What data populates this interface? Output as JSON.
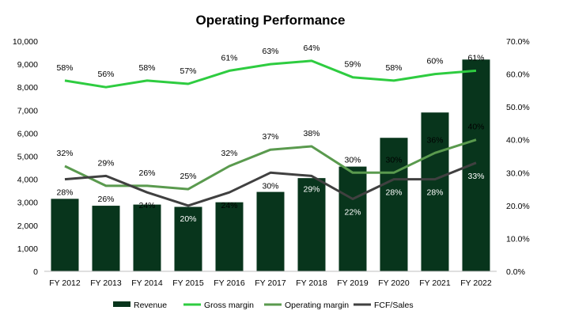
{
  "chart_data": {
    "type": "bar",
    "title": "Operating Performance",
    "categories": [
      "FY 2012",
      "FY 2013",
      "FY 2014",
      "FY 2015",
      "FY 2016",
      "FY 2017",
      "FY 2018",
      "FY 2019",
      "FY 2020",
      "FY 2021",
      "FY 2022"
    ],
    "y_left": {
      "min": 0,
      "max": 10000,
      "step": 1000,
      "tick_labels": [
        "0",
        "1,000",
        "2,000",
        "3,000",
        "4,000",
        "5,000",
        "6,000",
        "7,000",
        "8,000",
        "9,000",
        "10,000"
      ]
    },
    "y_right": {
      "min": 0,
      "max": 0.7,
      "step": 0.1,
      "tick_labels": [
        "0.0%",
        "10.0%",
        "20.0%",
        "30.0%",
        "40.0%",
        "50.0%",
        "60.0%",
        "70.0%"
      ]
    },
    "series": [
      {
        "name": "Revenue",
        "type": "bar",
        "axis": "left",
        "color": "#08351c",
        "values": [
          3150,
          2850,
          2900,
          2800,
          3000,
          3450,
          4050,
          4550,
          5800,
          6900,
          9200
        ]
      },
      {
        "name": "Gross margin",
        "type": "line",
        "axis": "right",
        "color": "#2ecc40",
        "values": [
          0.58,
          0.56,
          0.58,
          0.57,
          0.61,
          0.63,
          0.64,
          0.59,
          0.58,
          0.6,
          0.61
        ],
        "labels": [
          "58%",
          "56%",
          "58%",
          "57%",
          "61%",
          "63%",
          "64%",
          "59%",
          "58%",
          "60%",
          "61%"
        ]
      },
      {
        "name": "Operating margin",
        "type": "line",
        "axis": "right",
        "color": "#5a9a4e",
        "values": [
          0.32,
          0.26,
          0.26,
          0.25,
          0.32,
          0.37,
          0.38,
          0.3,
          0.3,
          0.36,
          0.4
        ],
        "labels": [
          "32%",
          "26%",
          "26%",
          "25%",
          "32%",
          "37%",
          "38%",
          "30%",
          "30%",
          "36%",
          "40%"
        ]
      },
      {
        "name": "FCF/Sales",
        "type": "line",
        "axis": "right",
        "color": "#404040",
        "values": [
          0.28,
          0.29,
          0.24,
          0.2,
          0.24,
          0.3,
          0.29,
          0.22,
          0.28,
          0.28,
          0.33
        ],
        "labels": [
          "28%",
          "29%",
          "24%",
          "20%",
          "24%",
          "30%",
          "29%",
          "22%",
          "28%",
          "28%",
          "33%"
        ]
      }
    ],
    "legend": {
      "position": "bottom"
    },
    "grid": false
  }
}
